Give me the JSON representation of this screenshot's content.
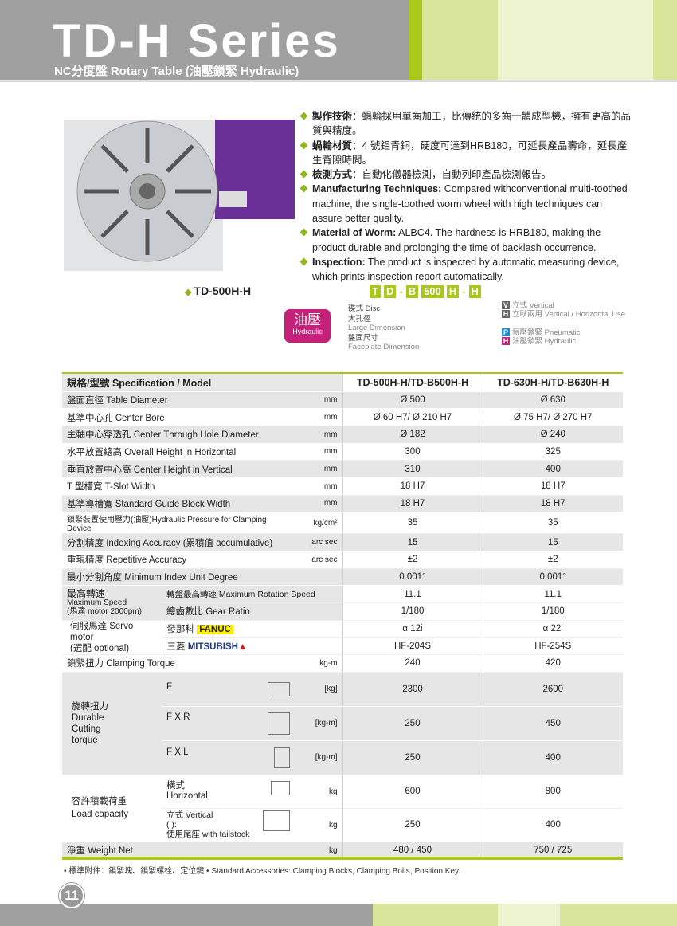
{
  "header": {
    "title": "TD-H Series",
    "subtitle": "NC分度盤  Rotary Table (油壓鎖緊 Hydraulic)"
  },
  "features": [
    {
      "label": "製作技術",
      "text": "：蝸輪採用單齒加工，比傳統的多齒一體成型機，擁有更高的品質與精度。"
    },
    {
      "label": "蝸輪材質",
      "text": "：4 號鋁青銅，硬度可達到HRB180，可延長產品壽命，延長產生背隙時間。"
    },
    {
      "label": "檢測方式",
      "text": "：自動化儀器檢測，自動列印產品檢測報告。"
    },
    {
      "label": "Manufacturing Techniques:",
      "text": " Compared withconventional multi-toothed machine, the single-toothed worm wheel with high techniques can assure better quality."
    },
    {
      "label": "Material of Worm:",
      "text": " ALBC4. The hardness is HRB180, making the product durable and prolonging the time of backlash occurrence."
    },
    {
      "label": "Inspection:",
      "text": " The product is inspected by automatic measuring device, which prints inspection report automatically."
    }
  ],
  "model_name": "TD-500H-H",
  "code": [
    "T",
    "D",
    "-",
    "B",
    "500",
    "H",
    "-",
    "H"
  ],
  "code_legend": {
    "disc": "碟式 Disc",
    "large_zh": "大孔徑",
    "large_en": "Large Dimension",
    "face_zh": "盤面尺寸",
    "face_en": "Faceplate Dimension",
    "v": "V",
    "v_text": "立式 Vertical",
    "h": "H",
    "h_text": "立臥兩用 Vertical / Horizontal Use",
    "p": "P",
    "p_text": "氣壓鎖緊 Pneumatic",
    "h2": "H",
    "h2_text": "油壓鎖緊 Hydraulic"
  },
  "badge": {
    "zh": "油壓",
    "en": "Hydraulic"
  },
  "colors": {
    "accent": "#a8c81a",
    "header_gray": "#a0a0a0",
    "badge": "#c6217a",
    "fanuc": "#ffee00",
    "mitsubishi": "#1b3a8a",
    "machine": "#7b3fa8"
  },
  "table": {
    "header": {
      "label": "規格/型號  Specification / Model",
      "col1": "TD-500H-H/TD-B500H-H",
      "col2": "TD-630H-H/TD-B630H-H"
    },
    "rows": [
      {
        "label": "盤面直徑 Table Diameter",
        "unit": "mm",
        "v1": "Ø 500",
        "v2": "Ø 630"
      },
      {
        "label": "基準中心孔 Center Bore",
        "unit": "mm",
        "v1": "Ø 60 H7/ Ø 210 H7",
        "v2": "Ø 75 H7/ Ø 270 H7"
      },
      {
        "label": "主軸中心穿透孔 Center Through Hole Diameter",
        "unit": "mm",
        "v1": "Ø 182",
        "v2": "Ø 240"
      },
      {
        "label": "水平放置總高 Overall Height in Horizontal",
        "unit": "mm",
        "v1": "300",
        "v2": "325"
      },
      {
        "label": "垂直放置中心高 Center Height in Vertical",
        "unit": "mm",
        "v1": "310",
        "v2": "400"
      },
      {
        "label": "T 型槽寬 T-Slot Width",
        "unit": "mm",
        "v1": "18 H7",
        "v2": "18 H7"
      },
      {
        "label": "基準導槽寬 Standard Guide Block Width",
        "unit": "mm",
        "v1": "18 H7",
        "v2": "18 H7"
      },
      {
        "label": "鎖緊裝置使用壓力(油壓)Hydraulic Pressure for Clamping Device",
        "unit": "kg/cm²",
        "v1": "35",
        "v2": "35"
      },
      {
        "label": "分割精度 Indexing Accuracy (累積值 accumulative)",
        "unit": "arc  sec",
        "v1": "15",
        "v2": "15"
      },
      {
        "label": "重現精度 Repetitive Accuracy",
        "unit": "arc sec",
        "v1": "±2",
        "v2": "±2"
      },
      {
        "label": "最小分割角度 Minimum Index Unit Degree",
        "unit": "",
        "v1": "0.001°",
        "v2": "0.001°"
      }
    ],
    "speed": {
      "label_zh": "最高轉速",
      "label_en": "Maximum Speed",
      "label_note": "(馬達 motor 2000pm)",
      "r1": "轉盤最高轉速 Maximum Rotation Speed",
      "r1v1": "11.1",
      "r1v2": "11.1",
      "r2": "總齒數比 Gear Ratio",
      "r2v1": "1/180",
      "r2v2": "1/180"
    },
    "servo": {
      "label": "伺服馬達 Servo motor",
      "note": "(選配 optional)",
      "fanuc_zh": "發那科",
      "fanuc": "FANUC",
      "f1": "α 12i",
      "f2": "α 22i",
      "mit_zh": "三菱",
      "mit": "MITSUBISH",
      "m1": "HF-204S",
      "m2": "HF-254S"
    },
    "clamp": {
      "label": "鎖緊扭力 Clamping Torque",
      "unit": "kg-m",
      "v1": "240",
      "v2": "420"
    },
    "torque": {
      "zh": "旋轉扭力",
      "en1": "Durable",
      "en2": "Cutting",
      "en3": "torque",
      "rows": [
        {
          "l": "F",
          "u": "[kg]",
          "v1": "2300",
          "v2": "2600"
        },
        {
          "l": "F X R",
          "u": "[kg-m]",
          "v1": "250",
          "v2": "450"
        },
        {
          "l": "F X L",
          "u": "[kg-m]",
          "v1": "250",
          "v2": "400"
        }
      ]
    },
    "load": {
      "zh": "容許積載荷重",
      "en": "Load capacity",
      "h_zh": "橫式",
      "h_en": "Horizontal",
      "h_u": "kg",
      "h1": "600",
      "h2": "800",
      "v_en": "立式  Vertical",
      "v_p": "(  ):",
      "v_zh": "使用尾座  with tailstock",
      "v_u": "kg",
      "vv1": "250",
      "vv2": "400"
    },
    "weight": {
      "label": "淨重  Weight Net",
      "unit": "kg",
      "v1": "480 / 450",
      "v2": "750 / 725"
    }
  },
  "note": "• 標準附件：鎖緊塊、鎖緊螺栓、定位鍵    • Standard Accessories: Clamping Blocks, Clamping Bolts, Position Key.",
  "page_number": "11"
}
